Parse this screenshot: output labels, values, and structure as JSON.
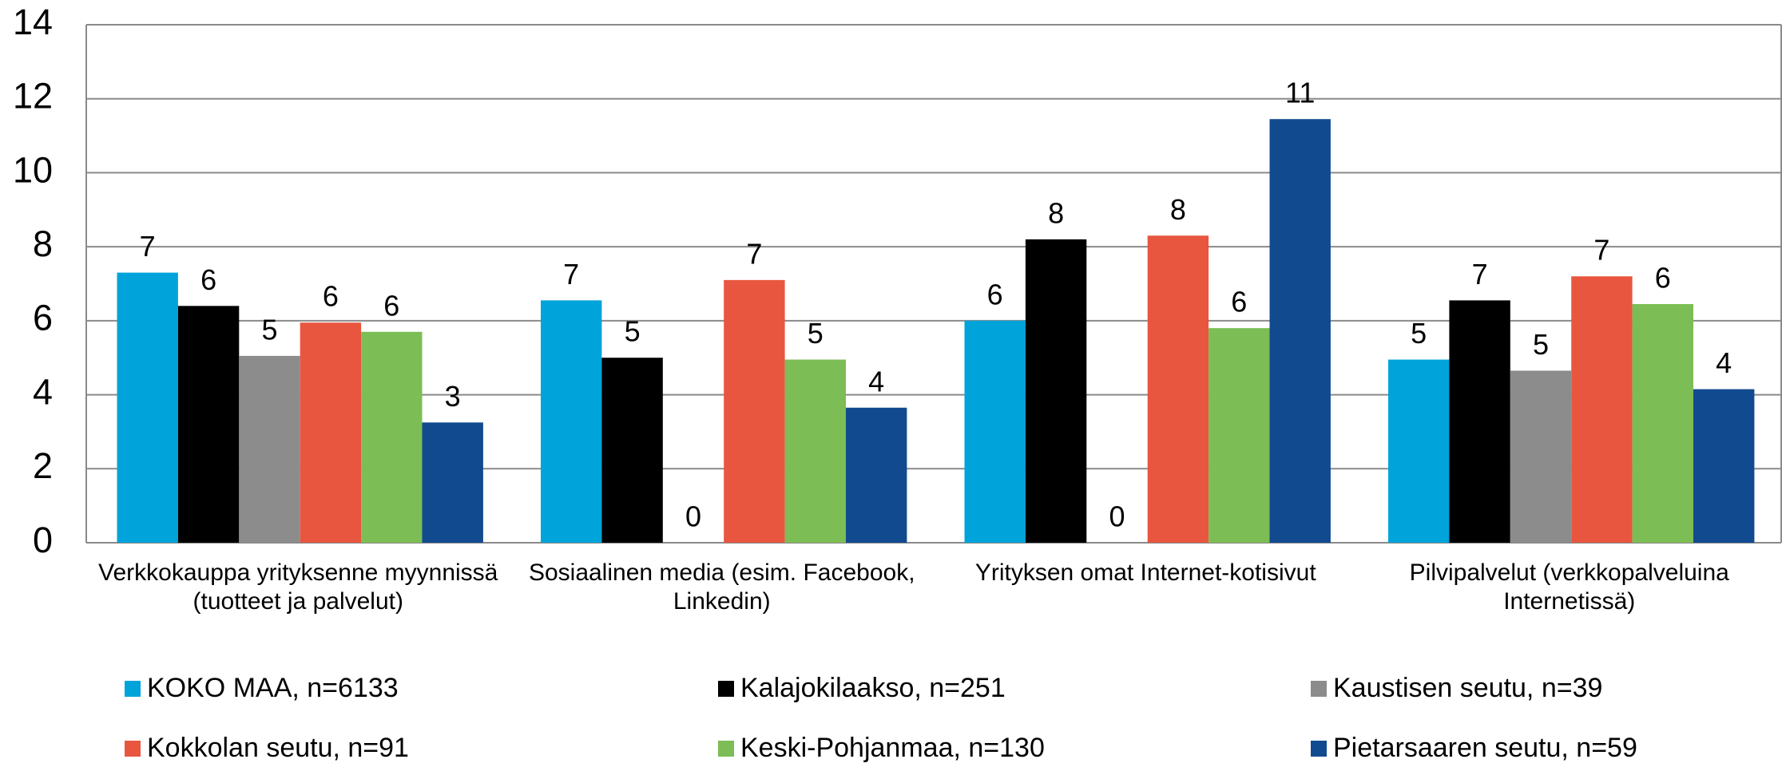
{
  "chart_data": {
    "type": "bar",
    "categories": [
      "Verkkokauppa yrityksenne myynnissä (tuotteet ja palvelut)",
      "Sosiaalinen media (esim. Facebook, Linkedin)",
      "Yrityksen omat Internet-kotisivut",
      "Pilvipalvelut  (verkkopalveluina Internetissä)"
    ],
    "series": [
      {
        "name": "KOKO MAA, n=6133",
        "color": "#00a3da",
        "values": [
          7.3,
          6.55,
          6.0,
          4.95
        ],
        "value_labels": [
          "7",
          "7",
          "6",
          "5"
        ]
      },
      {
        "name": "Kalajokilaakso, n=251",
        "color": "#000000",
        "values": [
          6.4,
          5.0,
          8.2,
          6.55
        ],
        "value_labels": [
          "6",
          "5",
          "8",
          "7"
        ]
      },
      {
        "name": "Kaustisen seutu, n=39",
        "color": "#8c8c8c",
        "values": [
          5.05,
          0,
          0,
          4.65
        ],
        "value_labels": [
          "5",
          "0",
          "0",
          "5"
        ]
      },
      {
        "name": "Kokkolan seutu, n=91",
        "color": "#e8563f",
        "values": [
          5.95,
          7.1,
          8.3,
          7.2
        ],
        "value_labels": [
          "6",
          "7",
          "8",
          "7"
        ]
      },
      {
        "name": "Keski-Pohjanmaa, n=130",
        "color": "#7cbd55",
        "values": [
          5.7,
          4.95,
          5.8,
          6.45
        ],
        "value_labels": [
          "6",
          "5",
          "6",
          "6"
        ]
      },
      {
        "name": "Pietarsaaren seutu, n=59",
        "color": "#124a8f",
        "values": [
          3.25,
          3.65,
          11.45,
          4.15
        ],
        "value_labels": [
          "3",
          "4",
          "11",
          "4"
        ]
      }
    ],
    "ylim": [
      0,
      14
    ],
    "yticks": [
      0,
      2,
      4,
      6,
      8,
      10,
      12,
      14
    ],
    "grid": true,
    "legend": "bottom"
  }
}
